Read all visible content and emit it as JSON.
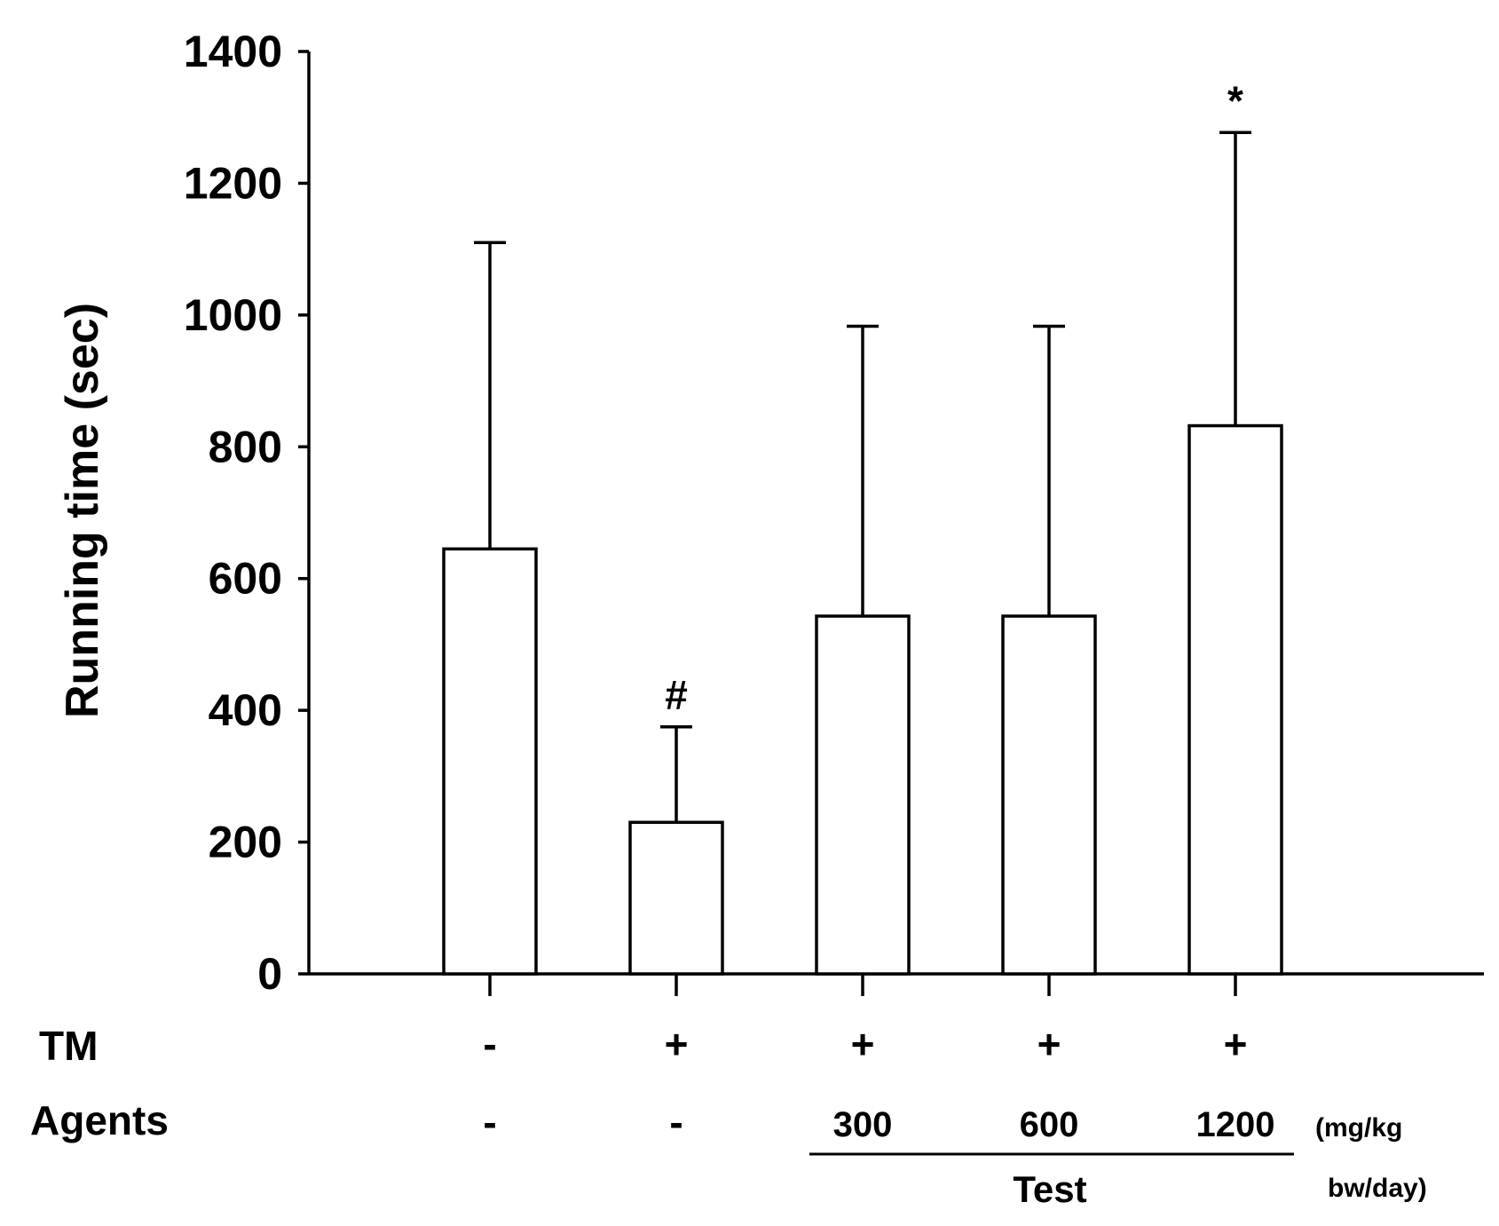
{
  "chart_data": {
    "type": "bar",
    "ylabel": "Running time (sec)",
    "ylim": [
      0,
      1400
    ],
    "yticks": [
      0,
      200,
      400,
      600,
      800,
      1000,
      1200,
      1400
    ],
    "grid": false,
    "bars": [
      {
        "value": 645,
        "error": 465,
        "tm": "-",
        "agent": "-",
        "annotation": ""
      },
      {
        "value": 230,
        "error": 145,
        "tm": "+",
        "agent": "-",
        "annotation": "#"
      },
      {
        "value": 543,
        "error": 440,
        "tm": "+",
        "agent": "300",
        "annotation": ""
      },
      {
        "value": 543,
        "error": 440,
        "tm": "+",
        "agent": "600",
        "annotation": ""
      },
      {
        "value": 832,
        "error": 445,
        "tm": "+",
        "agent": "1200",
        "annotation": "*"
      }
    ],
    "row_labels": {
      "tm": "TM",
      "agents": "Agents"
    },
    "group_label": "Test",
    "unit_lines": [
      "(mg/kg",
      "bw/day)"
    ]
  }
}
